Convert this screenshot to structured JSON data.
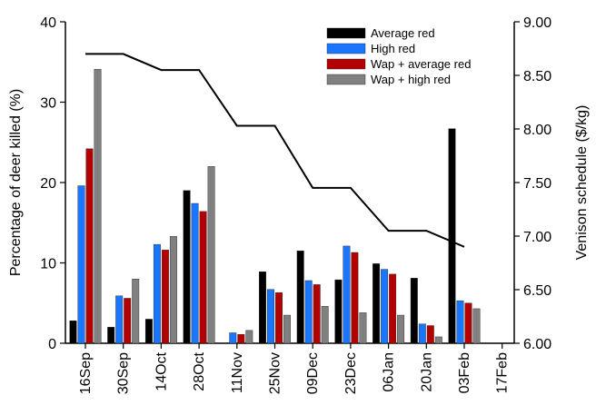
{
  "chart_data": {
    "type": "bar",
    "categories": [
      "16Sep",
      "30Sep",
      "14Oct",
      "28Oct",
      "11Nov",
      "25Nov",
      "09Dec",
      "23Dec",
      "06Jan",
      "20Jan",
      "03Feb",
      "17Feb"
    ],
    "ylabel": "Percentage of deer killed (%)",
    "y2label": "Venison schedule ($/kg)",
    "ylim": [
      0,
      40
    ],
    "yticks": [
      "0",
      "10",
      "20",
      "30",
      "40"
    ],
    "y2lim": [
      6.0,
      9.0
    ],
    "y2ticks": [
      "6.00",
      "6.50",
      "7.00",
      "7.50",
      "8.00",
      "8.50",
      "9.00"
    ],
    "legend_position": "top-right",
    "series": [
      {
        "name": "Average red",
        "color": "#000000",
        "values": [
          2.8,
          2.0,
          3.0,
          19.0,
          0,
          8.9,
          11.5,
          7.9,
          9.9,
          8.1,
          26.7,
          null
        ]
      },
      {
        "name": "High red",
        "color": "#1a75ff",
        "values": [
          19.6,
          5.9,
          12.3,
          17.4,
          1.3,
          6.7,
          7.8,
          12.1,
          9.2,
          2.4,
          5.3,
          null
        ]
      },
      {
        "name": "Wap + average red",
        "color": "#b30000",
        "values": [
          24.2,
          5.6,
          11.6,
          16.4,
          1.1,
          6.3,
          7.3,
          11.3,
          8.6,
          2.2,
          5.0,
          null
        ]
      },
      {
        "name": "Wap + high red",
        "color": "#808080",
        "values": [
          34.1,
          8.0,
          13.3,
          22.0,
          1.6,
          3.5,
          4.6,
          3.8,
          3.5,
          0.8,
          4.3,
          null
        ]
      }
    ],
    "line_series": {
      "axis": "secondary",
      "color": "#000000",
      "x": [
        "16Sep",
        "30Sep",
        "14Oct",
        "28Oct",
        "11Nov",
        "25Nov",
        "09Dec",
        "23Dec",
        "06Jan",
        "20Jan",
        "03Feb"
      ],
      "values": [
        8.7,
        8.7,
        8.55,
        8.55,
        8.03,
        8.03,
        7.45,
        7.45,
        7.05,
        7.05,
        6.9
      ]
    }
  }
}
